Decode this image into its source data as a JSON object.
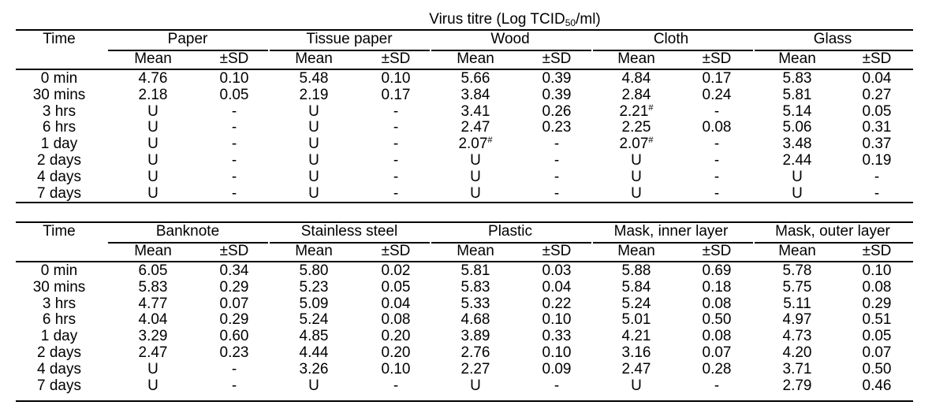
{
  "title_prefix": "Virus titre (Log TCID",
  "title_sub": "50",
  "title_suffix": "/ml)",
  "col_time": "Time",
  "col_mean": "Mean",
  "col_sd": "±SD",
  "time_labels": [
    "0 min",
    "30 mins",
    "3 hrs",
    "6 hrs",
    "1 day",
    "2 days",
    "4 days",
    "7 days"
  ],
  "tables": [
    {
      "surfaces": [
        {
          "name": "Paper",
          "rows": [
            [
              "4.76",
              "0.10"
            ],
            [
              "2.18",
              "0.05"
            ],
            [
              "U",
              "-"
            ],
            [
              "U",
              "-"
            ],
            [
              "U",
              "-"
            ],
            [
              "U",
              "-"
            ],
            [
              "U",
              "-"
            ],
            [
              "U",
              "-"
            ]
          ]
        },
        {
          "name": "Tissue paper",
          "rows": [
            [
              "5.48",
              "0.10"
            ],
            [
              "2.19",
              "0.17"
            ],
            [
              "U",
              "-"
            ],
            [
              "U",
              "-"
            ],
            [
              "U",
              "-"
            ],
            [
              "U",
              "-"
            ],
            [
              "U",
              "-"
            ],
            [
              "U",
              "-"
            ]
          ]
        },
        {
          "name": "Wood",
          "rows": [
            [
              "5.66",
              "0.39"
            ],
            [
              "3.84",
              "0.39"
            ],
            [
              "3.41",
              "0.26"
            ],
            [
              "2.47",
              "0.23"
            ],
            [
              "2.07#",
              "-"
            ],
            [
              "U",
              "-"
            ],
            [
              "U",
              "-"
            ],
            [
              "U",
              "-"
            ]
          ]
        },
        {
          "name": "Cloth",
          "rows": [
            [
              "4.84",
              "0.17"
            ],
            [
              "2.84",
              "0.24"
            ],
            [
              "2.21#",
              "-"
            ],
            [
              "2.25",
              "0.08"
            ],
            [
              "2.07#",
              "-"
            ],
            [
              "U",
              "-"
            ],
            [
              "U",
              "-"
            ],
            [
              "U",
              "-"
            ]
          ]
        },
        {
          "name": "Glass",
          "rows": [
            [
              "5.83",
              "0.04"
            ],
            [
              "5.81",
              "0.27"
            ],
            [
              "5.14",
              "0.05"
            ],
            [
              "5.06",
              "0.31"
            ],
            [
              "3.48",
              "0.37"
            ],
            [
              "2.44",
              "0.19"
            ],
            [
              "U",
              "-"
            ],
            [
              "U",
              "-"
            ]
          ]
        }
      ]
    },
    {
      "surfaces": [
        {
          "name": "Banknote",
          "rows": [
            [
              "6.05",
              "0.34"
            ],
            [
              "5.83",
              "0.29"
            ],
            [
              "4.77",
              "0.07"
            ],
            [
              "4.04",
              "0.29"
            ],
            [
              "3.29",
              "0.60"
            ],
            [
              "2.47",
              "0.23"
            ],
            [
              "U",
              "-"
            ],
            [
              "U",
              "-"
            ]
          ]
        },
        {
          "name": "Stainless steel",
          "rows": [
            [
              "5.80",
              "0.02"
            ],
            [
              "5.23",
              "0.05"
            ],
            [
              "5.09",
              "0.04"
            ],
            [
              "5.24",
              "0.08"
            ],
            [
              "4.85",
              "0.20"
            ],
            [
              "4.44",
              "0.20"
            ],
            [
              "3.26",
              "0.10"
            ],
            [
              "U",
              "-"
            ]
          ]
        },
        {
          "name": "Plastic",
          "rows": [
            [
              "5.81",
              "0.03"
            ],
            [
              "5.83",
              "0.04"
            ],
            [
              "5.33",
              "0.22"
            ],
            [
              "4.68",
              "0.10"
            ],
            [
              "3.89",
              "0.33"
            ],
            [
              "2.76",
              "0.10"
            ],
            [
              "2.27",
              "0.09"
            ],
            [
              "U",
              "-"
            ]
          ]
        },
        {
          "name": "Mask, inner layer",
          "rows": [
            [
              "5.88",
              "0.69"
            ],
            [
              "5.84",
              "0.18"
            ],
            [
              "5.24",
              "0.08"
            ],
            [
              "5.01",
              "0.50"
            ],
            [
              "4.21",
              "0.08"
            ],
            [
              "3.16",
              "0.07"
            ],
            [
              "2.47",
              "0.28"
            ],
            [
              "U",
              "-"
            ]
          ]
        },
        {
          "name": "Mask, outer layer",
          "rows": [
            [
              "5.78",
              "0.10"
            ],
            [
              "5.75",
              "0.08"
            ],
            [
              "5.11",
              "0.29"
            ],
            [
              "4.97",
              "0.51"
            ],
            [
              "4.73",
              "0.05"
            ],
            [
              "4.20",
              "0.07"
            ],
            [
              "3.71",
              "0.50"
            ],
            [
              "2.79",
              "0.46"
            ]
          ]
        }
      ]
    }
  ]
}
